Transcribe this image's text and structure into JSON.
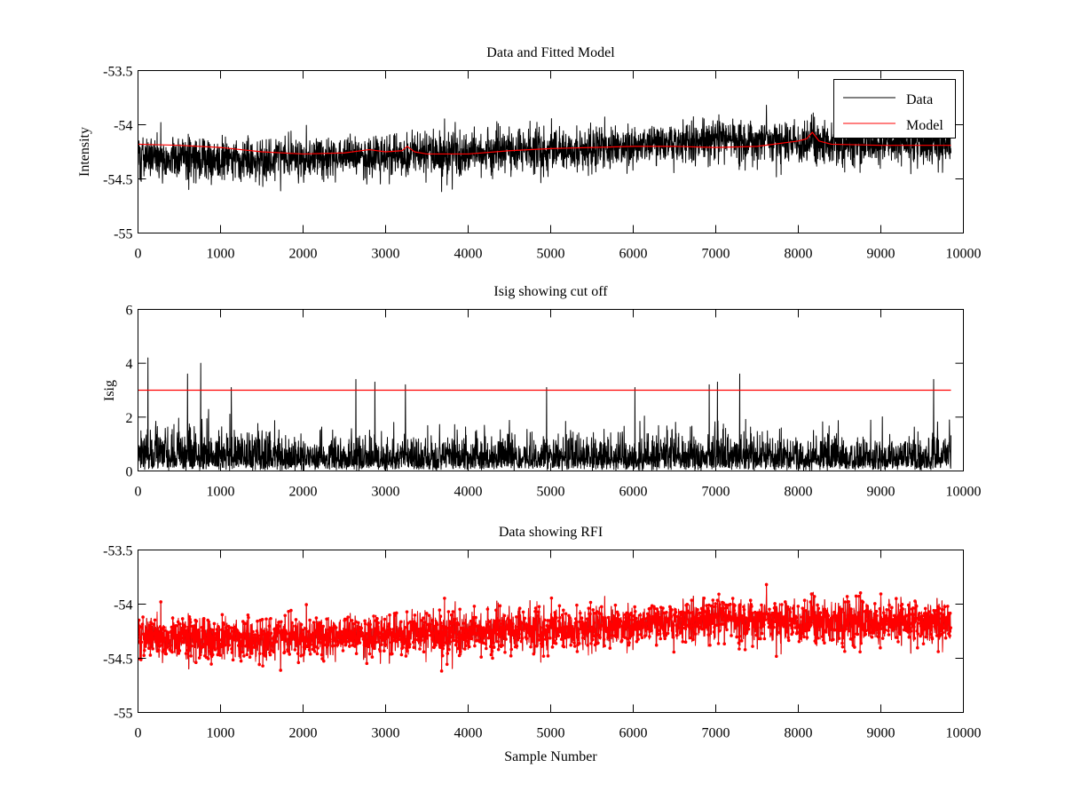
{
  "chart_data": [
    {
      "type": "line",
      "title": "Data and Fitted Model",
      "xlabel": "",
      "ylabel": "Intensity",
      "xlim": [
        0,
        10000
      ],
      "ylim": [
        -55,
        -53.5
      ],
      "x_ticks": [
        "0",
        "1000",
        "2000",
        "3000",
        "4000",
        "5000",
        "6000",
        "7000",
        "8000",
        "9000",
        "10000"
      ],
      "y_ticks": [
        "-53.5",
        "-54",
        "-54.5",
        "-55"
      ],
      "n_samples": 9850,
      "legend": {
        "position": "top-right",
        "entries": [
          "Data",
          "Model"
        ]
      },
      "series": [
        {
          "name": "Data",
          "color": "#000000",
          "style": "noisy-line",
          "trend_x": [
            0,
            1000,
            2000,
            3000,
            4000,
            5000,
            6000,
            7000,
            8000,
            9000,
            9850
          ],
          "trend_y": [
            -54.3,
            -54.31,
            -54.3,
            -54.28,
            -54.27,
            -54.23,
            -54.2,
            -54.15,
            -54.15,
            -54.17,
            -54.18
          ],
          "spread": 0.1
        },
        {
          "name": "Model",
          "color": "#ff0000",
          "style": "smooth-line",
          "x": [
            0,
            500,
            1000,
            1500,
            2000,
            2500,
            2800,
            3000,
            3200,
            3260,
            3350,
            3500,
            4000,
            4500,
            5000,
            5500,
            6000,
            6500,
            7000,
            7500,
            7800,
            8000,
            8100,
            8170,
            8250,
            8400,
            9000,
            9850
          ],
          "y": [
            -54.18,
            -54.19,
            -54.21,
            -54.25,
            -54.27,
            -54.26,
            -54.23,
            -54.25,
            -54.24,
            -54.2,
            -54.25,
            -54.27,
            -54.27,
            -54.24,
            -54.22,
            -54.21,
            -54.2,
            -54.2,
            -54.21,
            -54.2,
            -54.17,
            -54.15,
            -54.13,
            -54.07,
            -54.15,
            -54.18,
            -54.19,
            -54.19
          ]
        }
      ]
    },
    {
      "type": "line",
      "title": "Isig showing cut off",
      "xlabel": "",
      "ylabel": "Isig",
      "xlim": [
        0,
        10000
      ],
      "ylim": [
        0,
        6
      ],
      "x_ticks": [
        "0",
        "1000",
        "2000",
        "3000",
        "4000",
        "5000",
        "6000",
        "7000",
        "8000",
        "9000",
        "10000"
      ],
      "y_ticks": [
        "0",
        "2",
        "4",
        "6"
      ],
      "n_samples": 9850,
      "series": [
        {
          "name": "Isig",
          "color": "#000000",
          "style": "noisy-line",
          "trend_x": [
            0,
            1000,
            1500,
            3000,
            5000,
            7000,
            9000,
            9850
          ],
          "trend_y": [
            0.7,
            0.7,
            0.5,
            0.5,
            0.5,
            0.55,
            0.5,
            0.5
          ],
          "spread": 1.0,
          "peaks_x": [
            120,
            600,
            760,
            1130,
            2640,
            2870,
            3240,
            4950,
            6020,
            6920,
            7020,
            7290,
            9640
          ],
          "peaks_y": [
            4.2,
            3.6,
            4.0,
            3.1,
            3.4,
            3.3,
            3.2,
            3.1,
            3.1,
            3.2,
            3.3,
            3.6,
            3.4
          ]
        },
        {
          "name": "Cut off",
          "color": "#ff0000",
          "style": "smooth-line",
          "x": [
            0,
            9850
          ],
          "y": [
            3,
            3
          ]
        }
      ]
    },
    {
      "type": "line",
      "title": "Data showing RFI",
      "xlabel": "Sample Number",
      "ylabel": "",
      "xlim": [
        0,
        10000
      ],
      "ylim": [
        -55,
        -53.5
      ],
      "x_ticks": [
        "0",
        "1000",
        "2000",
        "3000",
        "4000",
        "5000",
        "6000",
        "7000",
        "8000",
        "9000",
        "10000"
      ],
      "y_ticks": [
        "-53.5",
        "-54",
        "-54.5",
        "-55"
      ],
      "n_samples": 9850,
      "series": [
        {
          "name": "Data",
          "color": "#000000",
          "style": "noisy-line",
          "trend_x": [
            0,
            1000,
            2000,
            3000,
            4000,
            5000,
            6000,
            7000,
            8000,
            9000,
            9850
          ],
          "trend_y": [
            -54.3,
            -54.31,
            -54.3,
            -54.28,
            -54.27,
            -54.23,
            -54.2,
            -54.15,
            -54.15,
            -54.17,
            -54.18
          ],
          "spread": 0.1
        },
        {
          "name": "RFI",
          "color": "#ff0000",
          "style": "marked-line",
          "trend_x": [
            0,
            1000,
            2000,
            3000,
            4000,
            5000,
            6000,
            7000,
            8000,
            9000,
            9850
          ],
          "trend_y": [
            -54.3,
            -54.31,
            -54.3,
            -54.28,
            -54.27,
            -54.23,
            -54.2,
            -54.15,
            -54.15,
            -54.17,
            -54.18
          ],
          "spread": 0.1
        }
      ]
    }
  ]
}
